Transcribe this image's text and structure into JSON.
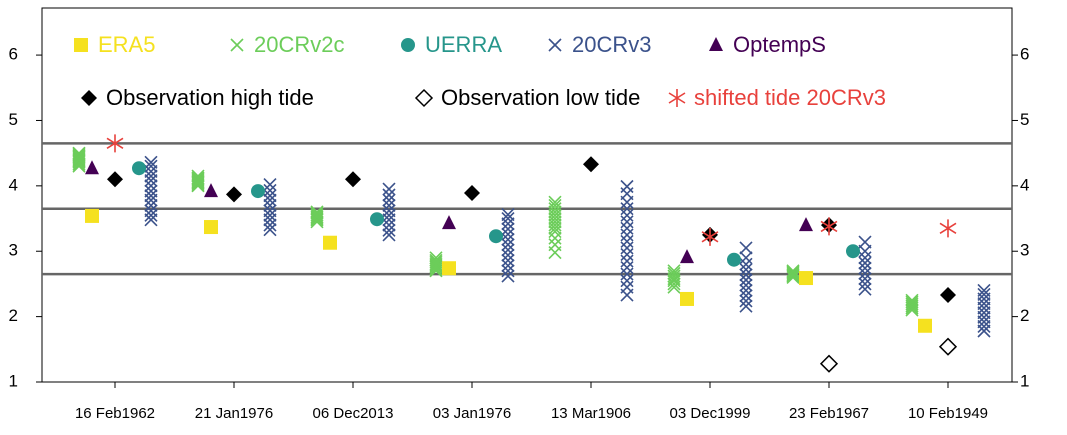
{
  "chart_data": {
    "type": "scatter",
    "categories": [
      "16 Feb1962",
      "21 Jan1976",
      "06 Dec2013",
      "03 Jan1976",
      "13 Mar1906",
      "03 Dec1999",
      "23 Feb1967",
      "10 Feb1949"
    ],
    "ylim": [
      1,
      6.72
    ],
    "yticks": [
      1,
      2,
      3,
      4,
      5,
      6
    ],
    "hlines": [
      4.65,
      3.65,
      2.65
    ],
    "series": [
      {
        "name": "ERA5",
        "color": "#f5e11f",
        "marker": "square",
        "values": [
          3.54,
          3.37,
          3.13,
          2.74,
          null,
          2.27,
          2.59,
          1.86
        ]
      },
      {
        "name": "20CRv2c",
        "color": "#6ccd5a",
        "marker": "x",
        "values": [
          [
            4.3,
            4.33,
            4.36,
            4.38,
            4.4,
            4.42,
            4.44,
            4.46,
            4.48,
            4.5
          ],
          [
            4.0,
            4.02,
            4.04,
            4.06,
            4.08,
            4.1,
            4.12,
            4.15
          ],
          [
            3.45,
            3.48,
            3.5,
            3.52,
            3.55,
            3.58,
            3.6
          ],
          [
            2.7,
            2.73,
            2.76,
            2.78,
            2.8,
            2.83,
            2.86,
            2.9
          ],
          [
            2.98,
            3.1,
            3.2,
            3.3,
            3.35,
            3.4,
            3.45,
            3.5,
            3.55,
            3.6,
            3.65,
            3.7,
            3.75
          ],
          [
            2.45,
            2.5,
            2.55,
            2.58,
            2.62,
            2.66,
            2.7
          ],
          [
            2.6,
            2.62,
            2.64,
            2.66,
            2.68,
            2.7
          ],
          [
            2.1,
            2.13,
            2.16,
            2.19,
            2.22,
            2.25
          ]
        ]
      },
      {
        "name": "UERRA",
        "color": "#26968b",
        "marker": "circle",
        "values": [
          4.27,
          3.92,
          3.49,
          3.23,
          null,
          2.87,
          3.0,
          null
        ]
      },
      {
        "name": "20CRv3",
        "color": "#3b528b",
        "marker": "x",
        "values": [
          [
            3.48,
            3.55,
            3.62,
            3.7,
            3.78,
            3.85,
            3.92,
            4.0,
            4.08,
            4.15,
            4.22,
            4.3,
            4.36
          ],
          [
            3.33,
            3.4,
            3.48,
            3.55,
            3.62,
            3.7,
            3.78,
            3.85,
            3.93,
            4.02
          ],
          [
            3.25,
            3.32,
            3.4,
            3.48,
            3.55,
            3.62,
            3.7,
            3.78,
            3.86,
            3.95
          ],
          [
            2.62,
            2.7,
            2.78,
            2.86,
            2.94,
            3.02,
            3.1,
            3.18,
            3.26,
            3.34,
            3.42,
            3.5,
            3.56
          ],
          [
            2.33,
            2.45,
            2.55,
            2.65,
            2.75,
            2.85,
            2.95,
            3.05,
            3.15,
            3.25,
            3.35,
            3.45,
            3.55,
            3.65,
            3.75,
            3.88,
            3.99
          ],
          [
            2.16,
            2.24,
            2.32,
            2.4,
            2.48,
            2.56,
            2.64,
            2.72,
            2.8,
            2.9,
            3.05
          ],
          [
            2.42,
            2.5,
            2.58,
            2.66,
            2.74,
            2.82,
            2.9,
            3.0,
            3.14
          ],
          [
            1.78,
            1.85,
            1.92,
            1.99,
            2.06,
            2.13,
            2.2,
            2.27,
            2.34,
            2.4
          ]
        ]
      },
      {
        "name": "OptempS",
        "color": "#440154",
        "marker": "triangle",
        "values": [
          4.27,
          3.92,
          null,
          3.43,
          null,
          2.91,
          3.4,
          null
        ]
      },
      {
        "name": "Observation high tide",
        "color": "#000000",
        "marker": "diamond",
        "values": [
          4.1,
          3.87,
          4.1,
          3.89,
          4.33,
          3.25,
          3.4,
          2.33
        ]
      },
      {
        "name": "Observation low tide",
        "color": "#000000",
        "marker": "open-diamond",
        "values": [
          null,
          null,
          null,
          null,
          null,
          null,
          1.28,
          1.54
        ]
      },
      {
        "name": "shifted tide 20CRv3",
        "color": "#e8413c",
        "marker": "asterisk",
        "values": [
          4.65,
          null,
          null,
          null,
          null,
          3.22,
          3.38,
          3.35
        ]
      }
    ]
  }
}
